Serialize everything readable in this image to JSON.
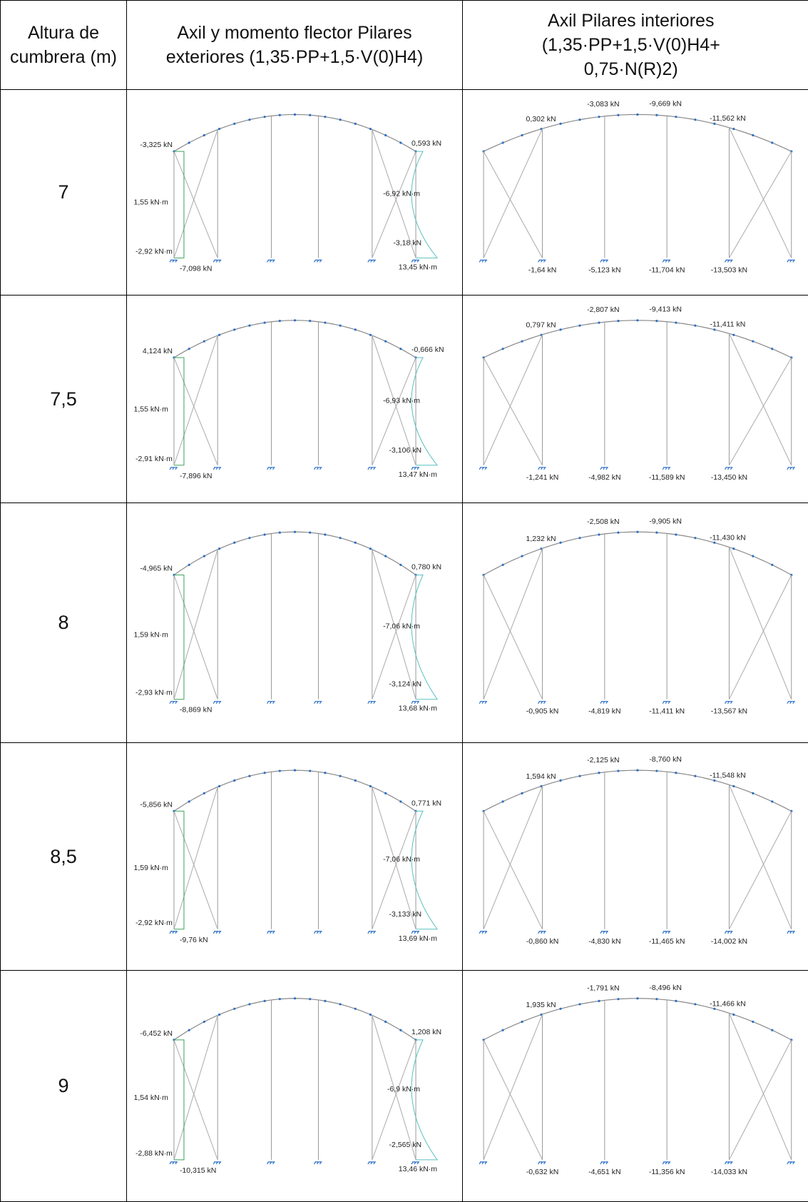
{
  "header": {
    "col1": "Altura de cumbrera (m)",
    "col2": "Axil y momento flector Pilares exteriores (1,35·PP+1,5·V(0)H4)",
    "col3": "Axil Pilares interiores (1,35·PP+1,5·V(0)H4+ 0,75·N(R)2)"
  },
  "rows": [
    {
      "height": "7",
      "exterior": {
        "axil_top_left": "-3,325 kN",
        "axil_top_right": "0,593 kN",
        "moment_mid_left": "1,55 kN·m",
        "moment_mid_right": "-6,92 kN·m",
        "moment_base_left": "-2,92 kN·m",
        "axil_base_left": "-7,098 kN",
        "axil_base_right": "-3,18 kN",
        "moment_base_right": "13,45 kN·m"
      },
      "interior": {
        "top": [
          "0,302 kN",
          "-3,083 kN",
          "-9,669 kN",
          "-11,562 kN"
        ],
        "bottom": [
          "-1,64 kN",
          "-5,123 kN",
          "-11,704 kN",
          "-13,503 kN"
        ]
      }
    },
    {
      "height": "7,5",
      "exterior": {
        "axil_top_left": "4,124 kN",
        "axil_top_right": "-0,666 kN",
        "moment_mid_left": "1,55 kN·m",
        "moment_mid_right": "-6,93 kN·m",
        "moment_base_left": "-2,91 kN·m",
        "axil_base_left": "-7,896 kN",
        "axil_base_right": "-3,106 kN",
        "moment_base_right": "13,47 kN·m"
      },
      "interior": {
        "top": [
          "0,797 kN",
          "-2,807 kN",
          "-9,413 kN",
          "-11,411 kN"
        ],
        "bottom": [
          "-1,241 kN",
          "-4,982 kN",
          "-11,589 kN",
          "-13,450 kN"
        ]
      }
    },
    {
      "height": "8",
      "exterior": {
        "axil_top_left": "-4,965 kN",
        "axil_top_right": "0,780 kN",
        "moment_mid_left": "1,59 kN·m",
        "moment_mid_right": "-7,06 kN·m",
        "moment_base_left": "-2,93 kN·m",
        "axil_base_left": "-8,869 kN",
        "axil_base_right": "-3,124 kN",
        "moment_base_right": "13,68 kN·m"
      },
      "interior": {
        "top": [
          "1,232 kN",
          "-2,508 kN",
          "-9,905 kN",
          "-11,430 kN"
        ],
        "bottom": [
          "-0,905 kN",
          "-4,819 kN",
          "-11,411 kN",
          "-13,567 kN"
        ]
      }
    },
    {
      "height": "8,5",
      "exterior": {
        "axil_top_left": "-5,856 kN",
        "axil_top_right": "0,771 kN",
        "moment_mid_left": "1,59 kN·m",
        "moment_mid_right": "-7,06 kN·m",
        "moment_base_left": "-2,92 kN·m",
        "axil_base_left": "-9,76 kN",
        "axil_base_right": "-3,133 kN",
        "moment_base_right": "13,69 kN·m"
      },
      "interior": {
        "top": [
          "1,594 kN",
          "-2,125 kN",
          "-8,760 kN",
          "-11,548 kN"
        ],
        "bottom": [
          "-0,860 kN",
          "-4,830 kN",
          "-11,465 kN",
          "-14,002 kN"
        ]
      }
    },
    {
      "height": "9",
      "exterior": {
        "axil_top_left": "-6,452 kN",
        "axil_top_right": "1,208 kN",
        "moment_mid_left": "1,54 kN·m",
        "moment_mid_right": "-6,9 kN·m",
        "moment_base_left": "-2,88 kN·m",
        "axil_base_left": "-10,315 kN",
        "axil_base_right": "-2,565 kN",
        "moment_base_right": "13,46 kN·m"
      },
      "interior": {
        "top": [
          "1,935 kN",
          "-1,791 kN",
          "-8,496 kN",
          "-11,466 kN"
        ],
        "bottom": [
          "-0,632 kN",
          "-4,651 kN",
          "-11,356 kN",
          "-14,033 kN"
        ]
      }
    }
  ]
}
